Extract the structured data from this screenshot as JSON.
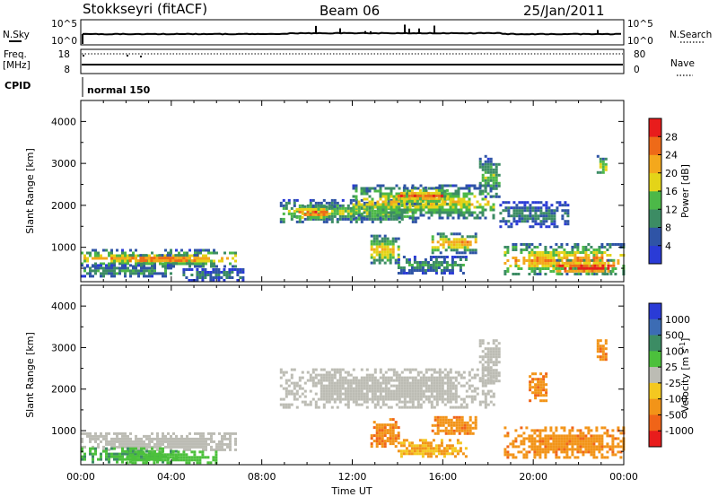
{
  "header": {
    "station": "Stokkseyri (fitACF)",
    "beam": "Beam 06",
    "date": "25/Jan/2011"
  },
  "status_panels": {
    "nsky": {
      "label": "N.Sky",
      "ticks": [
        "10^5",
        "10^0"
      ]
    },
    "nsearch": {
      "label": "N.Search",
      "ticks": [
        "10^5",
        "10^0"
      ]
    },
    "freq": {
      "label": "Freq.",
      "unit": "[MHz]",
      "ticks": [
        "18",
        "8"
      ]
    },
    "nave": {
      "label": "Nave",
      "ticks": [
        "80",
        "0"
      ]
    },
    "cpid": {
      "label": "CPID",
      "value": "normal 150"
    }
  },
  "colors": {
    "power": [
      "#2a3bd6",
      "#2f54a6",
      "#3c8c64",
      "#4cb848",
      "#e4d418",
      "#f4a81c",
      "#ee6a18",
      "#e81c1c"
    ],
    "velocity": [
      "#2a3bd6",
      "#3c6cb4",
      "#3c8c64",
      "#4cc03c",
      "#bcbcb4",
      "#f4c820",
      "#f29418",
      "#f06418",
      "#e81c1c"
    ],
    "sky_line": "#000000"
  },
  "chart_data": [
    {
      "type": "heatmap",
      "name": "power",
      "title": "",
      "xlabel": "Time UT",
      "ylabel": "Slant Range [km]",
      "xlim": [
        0,
        24
      ],
      "ylim": [
        180,
        4500
      ],
      "x_ticks": [
        "00:00",
        "04:00",
        "08:00",
        "12:00",
        "16:00",
        "20:00",
        "00:00"
      ],
      "y_ticks": [
        "1000",
        "2000",
        "3000",
        "4000"
      ],
      "colorbar": {
        "label": "Power [dB]",
        "ticks": [
          "4",
          "8",
          "12",
          "16",
          "20",
          "24",
          "28"
        ],
        "range": [
          0,
          32
        ]
      },
      "regions": [
        {
          "t": [
            0.0,
            6.8
          ],
          "r": [
            560,
            960
          ],
          "level": 18
        },
        {
          "t": [
            2.0,
            5.2
          ],
          "r": [
            650,
            840
          ],
          "level": 26
        },
        {
          "t": [
            0.0,
            4.0
          ],
          "r": [
            300,
            600
          ],
          "level": 10
        },
        {
          "t": [
            4.5,
            7.2
          ],
          "r": [
            240,
            500
          ],
          "level": 8
        },
        {
          "t": [
            8.8,
            14.8
          ],
          "r": [
            1580,
            2150
          ],
          "level": 14
        },
        {
          "t": [
            9.5,
            11.2
          ],
          "r": [
            1700,
            2000
          ],
          "level": 24
        },
        {
          "t": [
            12.0,
            18.3
          ],
          "r": [
            1700,
            2500
          ],
          "level": 16
        },
        {
          "t": [
            14.0,
            16.2
          ],
          "r": [
            2050,
            2450
          ],
          "level": 22
        },
        {
          "t": [
            17.6,
            18.5
          ],
          "r": [
            2200,
            3200
          ],
          "level": 12
        },
        {
          "t": [
            12.8,
            14.0
          ],
          "r": [
            600,
            1300
          ],
          "level": 18
        },
        {
          "t": [
            14.0,
            17.0
          ],
          "r": [
            400,
            800
          ],
          "level": 10
        },
        {
          "t": [
            15.5,
            17.5
          ],
          "r": [
            900,
            1350
          ],
          "level": 20
        },
        {
          "t": [
            18.5,
            21.5
          ],
          "r": [
            1500,
            2100
          ],
          "level": 8
        },
        {
          "t": [
            18.7,
            24.0
          ],
          "r": [
            350,
            1100
          ],
          "level": 20
        },
        {
          "t": [
            21.0,
            23.6
          ],
          "r": [
            380,
            720
          ],
          "level": 28
        },
        {
          "t": [
            22.8,
            23.2
          ],
          "r": [
            2700,
            3200
          ],
          "level": 16
        }
      ]
    },
    {
      "type": "heatmap",
      "name": "velocity",
      "title": "",
      "xlabel": "Time UT",
      "ylabel": "Slant Range [km]",
      "xlim": [
        0,
        24
      ],
      "ylim": [
        180,
        4500
      ],
      "x_ticks": [
        "00:00",
        "04:00",
        "08:00",
        "12:00",
        "16:00",
        "20:00",
        "00:00"
      ],
      "y_ticks": [
        "1000",
        "2000",
        "3000",
        "4000"
      ],
      "colorbar": {
        "label": "Velocity [m s^-1]",
        "ticks": [
          "1000",
          "500",
          "100",
          "25",
          "-25",
          "-100",
          "-500",
          "-1000"
        ],
        "range": [
          -1500,
          1500
        ]
      },
      "regions": [
        {
          "t": [
            0.0,
            6.8
          ],
          "r": [
            560,
            960
          ],
          "value": 0
        },
        {
          "t": [
            0.0,
            4.2
          ],
          "r": [
            220,
            600
          ],
          "value": 90
        },
        {
          "t": [
            2.0,
            6.0
          ],
          "r": [
            240,
            520
          ],
          "value": 60
        },
        {
          "t": [
            8.8,
            18.3
          ],
          "r": [
            1580,
            2500
          ],
          "value": 0
        },
        {
          "t": [
            17.6,
            18.5
          ],
          "r": [
            2200,
            3200
          ],
          "value": 0
        },
        {
          "t": [
            12.8,
            14.0
          ],
          "r": [
            600,
            1300
          ],
          "value": -420
        },
        {
          "t": [
            14.0,
            17.0
          ],
          "r": [
            400,
            800
          ],
          "value": -110
        },
        {
          "t": [
            15.5,
            17.5
          ],
          "r": [
            900,
            1350
          ],
          "value": -420
        },
        {
          "t": [
            19.8,
            20.6
          ],
          "r": [
            1700,
            2400
          ],
          "value": -420
        },
        {
          "t": [
            18.7,
            24.0
          ],
          "r": [
            350,
            1100
          ],
          "value": -400
        },
        {
          "t": [
            22.8,
            23.2
          ],
          "r": [
            2700,
            3200
          ],
          "value": -420
        }
      ]
    }
  ]
}
